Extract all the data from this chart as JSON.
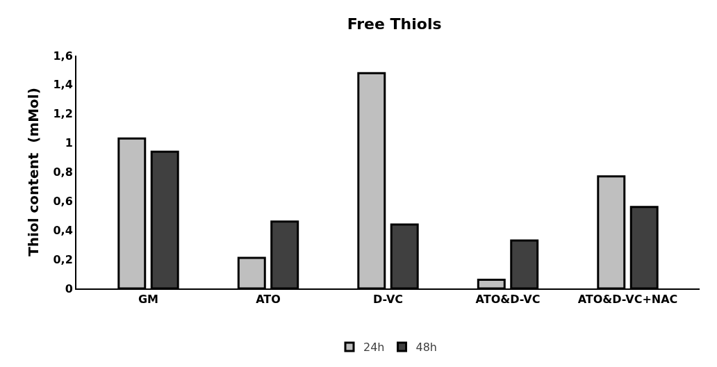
{
  "chart_data": {
    "type": "bar",
    "title": "Free Thiols",
    "ylabel": "Thiol content  (mMol)",
    "categories": [
      "GM",
      "ATO",
      "D-VC",
      "ATO&D-VC",
      "ATO&D-VC+NAC"
    ],
    "series": [
      {
        "name": "24h",
        "color": "#bfbfbf",
        "values": [
          1.03,
          0.21,
          1.48,
          0.06,
          0.77
        ]
      },
      {
        "name": "48h",
        "color": "#404040",
        "values": [
          0.94,
          0.46,
          0.44,
          0.33,
          0.56
        ]
      }
    ],
    "ylim": [
      0,
      1.6
    ],
    "yticks": [
      0,
      {
        "value": 0.2,
        "label": "0,2"
      },
      {
        "value": 0.4,
        "label": "0,4"
      },
      {
        "value": 0.6,
        "label": "0,6"
      },
      {
        "value": 0.8,
        "label": "0,8"
      },
      1,
      {
        "value": 1.2,
        "label": "1,2"
      },
      {
        "value": 1.4,
        "label": "1,4"
      },
      {
        "value": 1.6,
        "label": "1,6"
      }
    ],
    "legend": "bottom"
  }
}
